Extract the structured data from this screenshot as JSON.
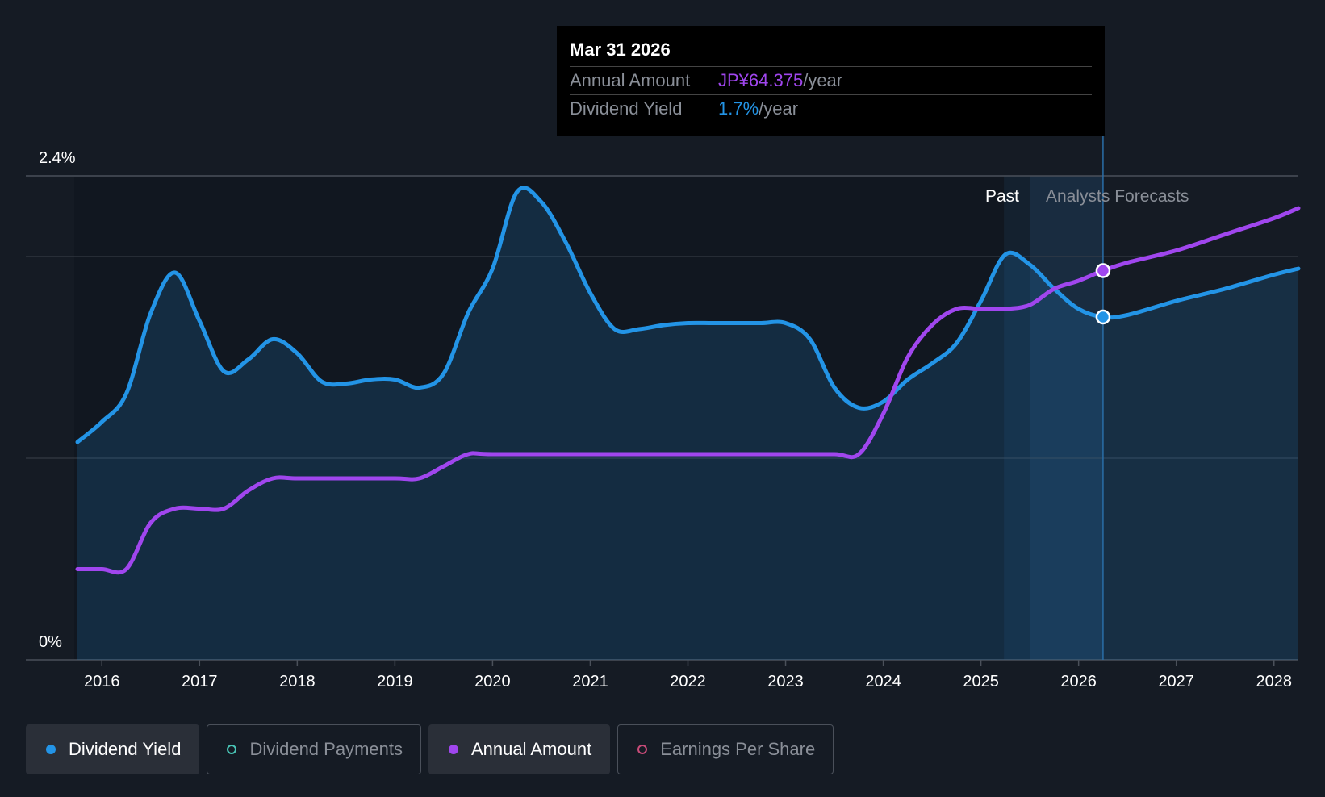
{
  "tooltip": {
    "date": "Mar 31 2026",
    "annual_amount_label": "Annual Amount",
    "annual_amount_value": "JP¥64.375",
    "annual_amount_unit": "/year",
    "dividend_yield_label": "Dividend Yield",
    "dividend_yield_value": "1.7%",
    "dividend_yield_unit": "/year"
  },
  "regions": {
    "past_label": "Past",
    "forecast_label": "Analysts Forecasts"
  },
  "legend": [
    {
      "label": "Dividend Yield",
      "color": "#2394e6",
      "active": true,
      "hollow": false
    },
    {
      "label": "Dividend Payments",
      "color": "#49c5b6",
      "active": false,
      "hollow": true
    },
    {
      "label": "Annual Amount",
      "color": "#a046ee",
      "active": true,
      "hollow": false
    },
    {
      "label": "Earnings Per Share",
      "color": "#e4588a",
      "active": false,
      "hollow": true
    }
  ],
  "chart_data": {
    "type": "line",
    "ylim": [
      0,
      2.4
    ],
    "ytick_labels": [
      "0%",
      "2.4%"
    ],
    "xlim": [
      2015.75,
      2028.25
    ],
    "xticks": [
      2016,
      2017,
      2018,
      2019,
      2020,
      2021,
      2022,
      2023,
      2024,
      2025,
      2026,
      2027,
      2028
    ],
    "x_tick_labels": [
      "2016",
      "2017",
      "2018",
      "2019",
      "2020",
      "2021",
      "2022",
      "2023",
      "2024",
      "2025",
      "2026",
      "2027",
      "2028"
    ],
    "past_end": 2025.5,
    "cursor_x": 2026.25,
    "gridline_values": [
      1.0,
      2.0
    ],
    "series": [
      {
        "name": "Dividend Yield",
        "color": "#2394e6",
        "fill": true,
        "points": [
          [
            2015.75,
            1.08
          ],
          [
            2016.0,
            1.18
          ],
          [
            2016.25,
            1.32
          ],
          [
            2016.5,
            1.72
          ],
          [
            2016.75,
            1.92
          ],
          [
            2017.0,
            1.68
          ],
          [
            2017.25,
            1.43
          ],
          [
            2017.5,
            1.49
          ],
          [
            2017.75,
            1.59
          ],
          [
            2018.0,
            1.52
          ],
          [
            2018.25,
            1.38
          ],
          [
            2018.5,
            1.37
          ],
          [
            2018.75,
            1.39
          ],
          [
            2019.0,
            1.39
          ],
          [
            2019.25,
            1.35
          ],
          [
            2019.5,
            1.42
          ],
          [
            2019.75,
            1.72
          ],
          [
            2020.0,
            1.94
          ],
          [
            2020.25,
            2.32
          ],
          [
            2020.5,
            2.27
          ],
          [
            2020.75,
            2.07
          ],
          [
            2021.0,
            1.82
          ],
          [
            2021.25,
            1.64
          ],
          [
            2021.5,
            1.64
          ],
          [
            2021.75,
            1.66
          ],
          [
            2022.0,
            1.67
          ],
          [
            2022.25,
            1.67
          ],
          [
            2022.5,
            1.67
          ],
          [
            2022.75,
            1.67
          ],
          [
            2023.0,
            1.67
          ],
          [
            2023.25,
            1.59
          ],
          [
            2023.5,
            1.35
          ],
          [
            2023.75,
            1.25
          ],
          [
            2024.0,
            1.28
          ],
          [
            2024.25,
            1.39
          ],
          [
            2024.5,
            1.47
          ],
          [
            2024.75,
            1.57
          ],
          [
            2025.0,
            1.78
          ],
          [
            2025.25,
            2.01
          ],
          [
            2025.5,
            1.96
          ],
          [
            2025.75,
            1.84
          ],
          [
            2026.0,
            1.74
          ],
          [
            2026.25,
            1.7
          ],
          [
            2026.5,
            1.71
          ],
          [
            2027.0,
            1.78
          ],
          [
            2027.5,
            1.84
          ],
          [
            2028.0,
            1.91
          ],
          [
            2028.25,
            1.94
          ]
        ]
      },
      {
        "name": "Annual Amount",
        "color": "#a046ee",
        "fill": false,
        "points": [
          [
            2015.75,
            0.45
          ],
          [
            2016.0,
            0.45
          ],
          [
            2016.25,
            0.45
          ],
          [
            2016.5,
            0.68
          ],
          [
            2016.75,
            0.75
          ],
          [
            2017.0,
            0.75
          ],
          [
            2017.25,
            0.75
          ],
          [
            2017.5,
            0.84
          ],
          [
            2017.75,
            0.9
          ],
          [
            2018.0,
            0.9
          ],
          [
            2018.5,
            0.9
          ],
          [
            2019.0,
            0.9
          ],
          [
            2019.25,
            0.9
          ],
          [
            2019.5,
            0.96
          ],
          [
            2019.75,
            1.02
          ],
          [
            2020.0,
            1.02
          ],
          [
            2021.0,
            1.02
          ],
          [
            2022.0,
            1.02
          ],
          [
            2023.0,
            1.02
          ],
          [
            2023.5,
            1.02
          ],
          [
            2023.75,
            1.02
          ],
          [
            2024.0,
            1.22
          ],
          [
            2024.25,
            1.5
          ],
          [
            2024.5,
            1.66
          ],
          [
            2024.75,
            1.74
          ],
          [
            2025.0,
            1.74
          ],
          [
            2025.25,
            1.74
          ],
          [
            2025.5,
            1.76
          ],
          [
            2025.75,
            1.84
          ],
          [
            2026.0,
            1.88
          ],
          [
            2026.25,
            1.93
          ],
          [
            2026.5,
            1.97
          ],
          [
            2027.0,
            2.03
          ],
          [
            2027.5,
            2.11
          ],
          [
            2028.0,
            2.19
          ],
          [
            2028.25,
            2.24
          ]
        ]
      }
    ]
  }
}
